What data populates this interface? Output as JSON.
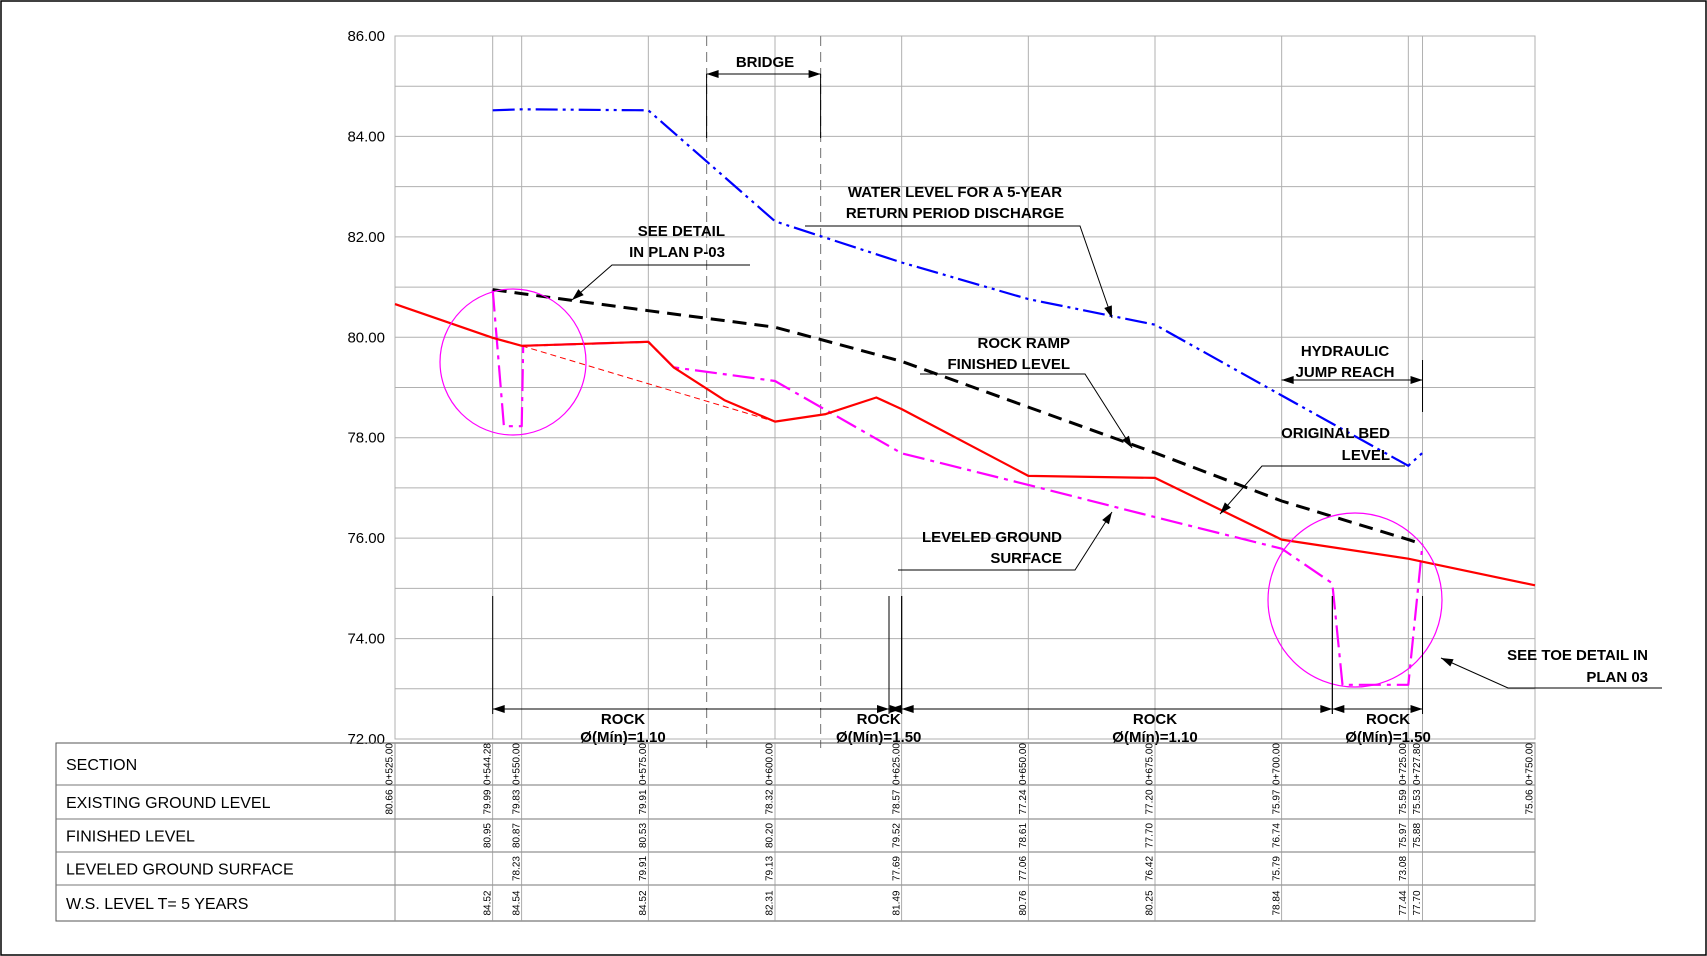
{
  "chart_data": {
    "type": "line",
    "title": "",
    "xlabel": "",
    "ylabel": "",
    "y_ticks": [
      "86.00",
      "84.00",
      "82.00",
      "80.00",
      "78.00",
      "76.00",
      "74.00",
      "72.00"
    ],
    "ylim": [
      72,
      86
    ],
    "xlim": [
      525,
      750
    ],
    "grid": true,
    "series": [
      {
        "key": "ws",
        "color": "#0000ff",
        "style": "dash-dot-dot",
        "points": [
          [
            544.28,
            84.52
          ],
          [
            550,
            84.54
          ],
          [
            575,
            84.52
          ],
          [
            600,
            82.31
          ],
          [
            625,
            81.49
          ],
          [
            650,
            80.76
          ],
          [
            675,
            80.25
          ],
          [
            700,
            78.84
          ],
          [
            725,
            77.44
          ],
          [
            727.8,
            77.7
          ]
        ]
      },
      {
        "key": "finished",
        "color": "#000000",
        "style": "dashed",
        "points": [
          [
            544.28,
            80.95
          ],
          [
            550,
            80.87
          ],
          [
            575,
            80.53
          ],
          [
            600,
            80.2
          ],
          [
            625,
            79.52
          ],
          [
            650,
            78.61
          ],
          [
            675,
            77.7
          ],
          [
            700,
            76.74
          ],
          [
            725,
            75.97
          ],
          [
            727.8,
            75.88
          ]
        ]
      },
      {
        "key": "leveled",
        "color": "#ff00ff",
        "style": "dash-dot",
        "points": [
          [
            544.28,
            80.95
          ],
          [
            546.5,
            78.23
          ],
          [
            550,
            78.23
          ],
          [
            550.3,
            79.83
          ],
          [
            575,
            79.91
          ],
          [
            580,
            79.4
          ],
          [
            600,
            79.13
          ],
          [
            625,
            77.69
          ],
          [
            650,
            77.06
          ],
          [
            675,
            76.42
          ],
          [
            700,
            75.79
          ],
          [
            710,
            75.1
          ],
          [
            712,
            73.08
          ],
          [
            725,
            73.08
          ],
          [
            727.8,
            75.88
          ]
        ]
      },
      {
        "key": "existing",
        "color": "#ff0000",
        "style": "solid",
        "points": [
          [
            525,
            80.66
          ],
          [
            544.28,
            79.99
          ],
          [
            550,
            79.83
          ],
          [
            575,
            79.91
          ],
          [
            580,
            79.4
          ],
          [
            590,
            78.75
          ],
          [
            600,
            78.32
          ],
          [
            610,
            78.47
          ],
          [
            620,
            78.8
          ],
          [
            625,
            78.57
          ],
          [
            650,
            77.24
          ],
          [
            675,
            77.2
          ],
          [
            700,
            75.97
          ],
          [
            725,
            75.59
          ],
          [
            727.8,
            75.53
          ],
          [
            750,
            75.06
          ]
        ]
      }
    ],
    "sections": [
      "0+525.00",
      "0+544.28",
      "0+550.00",
      "0+575.00",
      "0+600.00",
      "0+625.00",
      "0+650.00",
      "0+675.00",
      "0+700.00",
      "0+725.00",
      "0+727.80",
      "0+750.00"
    ],
    "profile_table": {
      "rows": [
        {
          "label": "SECTION",
          "key": "section"
        },
        {
          "label": "EXISTING GROUND LEVEL",
          "key": "existing"
        },
        {
          "label": "FINISHED LEVEL",
          "key": "finished"
        },
        {
          "label": "LEVELED GROUND SURFACE",
          "key": "leveled"
        },
        {
          "label": "W.S. LEVEL T= 5 YEARS",
          "key": "ws"
        }
      ],
      "columns": [
        {
          "x": 525,
          "section": "0+525.00",
          "existing": "80.66"
        },
        {
          "x": 544.28,
          "section": "0+544.28",
          "existing": "79.99",
          "finished": "80.95",
          "ws": "84.52"
        },
        {
          "x": 550,
          "section": "0+550.00",
          "existing": "79.83",
          "finished": "80.87",
          "leveled": "78.23",
          "ws": "84.54"
        },
        {
          "x": 575,
          "section": "0+575.00",
          "existing": "79.91",
          "finished": "80.53",
          "leveled": "79.91",
          "ws": "84.52"
        },
        {
          "x": 600,
          "section": "0+600.00",
          "existing": "78.32",
          "finished": "80.20",
          "leveled": "79.13",
          "ws": "82.31"
        },
        {
          "x": 625,
          "section": "0+625.00",
          "existing": "78.57",
          "finished": "79.52",
          "leveled": "77.69",
          "ws": "81.49"
        },
        {
          "x": 650,
          "section": "0+650.00",
          "existing": "77.24",
          "finished": "78.61",
          "leveled": "77.06",
          "ws": "80.76"
        },
        {
          "x": 675,
          "section": "0+675.00",
          "existing": "77.20",
          "finished": "77.70",
          "leveled": "76.42",
          "ws": "80.25"
        },
        {
          "x": 700,
          "section": "0+700.00",
          "existing": "75.97",
          "finished": "76.74",
          "leveled": "75.79",
          "ws": "78.84"
        },
        {
          "x": 725,
          "section": "0+725.00",
          "existing": "75.59",
          "finished": "75.97",
          "leveled": "73.08",
          "ws": "77.44"
        },
        {
          "x": 727.8,
          "section": "0+727.80",
          "existing": "75.53",
          "finished": "75.88",
          "ws": "77.70"
        },
        {
          "x": 750,
          "section": "0+750.00",
          "existing": "75.06"
        }
      ]
    },
    "annotations": {
      "bridge": "BRIDGE",
      "ws_label": [
        "WATER LEVEL FOR A  5-YEAR",
        "RETURN PERIOD DISCHARGE"
      ],
      "see_detail": [
        "SEE DETAIL",
        "IN PLAN P-03"
      ],
      "rock_ramp": [
        "ROCK RAMP",
        "FINISHED LEVEL"
      ],
      "hydraulic": [
        "HYDRAULIC",
        "JUMP REACH"
      ],
      "original_bed": [
        "ORIGINAL BED",
        "LEVEL"
      ],
      "leveled_ground": [
        "LEVELED GROUND",
        "SURFACE"
      ],
      "see_toe": [
        "SEE TOE DETAIL IN",
        "PLAN 03"
      ],
      "rock_zones": [
        {
          "from": 544.28,
          "to": 622.5,
          "label": "ROCK",
          "spec": "Ø(Mín)=1.10"
        },
        {
          "from": 622.5,
          "to": 625,
          "label": "ROCK",
          "spec": "Ø(Mín)=1.50"
        },
        {
          "from": 625,
          "to": 710,
          "label": "ROCK",
          "spec": "Ø(Mín)=1.10"
        },
        {
          "from": 710,
          "to": 727.8,
          "label": "ROCK",
          "spec": "Ø(Mín)=1.50"
        }
      ]
    }
  },
  "colors": {
    "water_surface": "#0000ff",
    "finished_level": "#000000",
    "leveled_ground": "#ff00ff",
    "existing_ground": "#ff0000",
    "detail_circle": "#ff00ff",
    "grid": "#b0b0b0"
  }
}
